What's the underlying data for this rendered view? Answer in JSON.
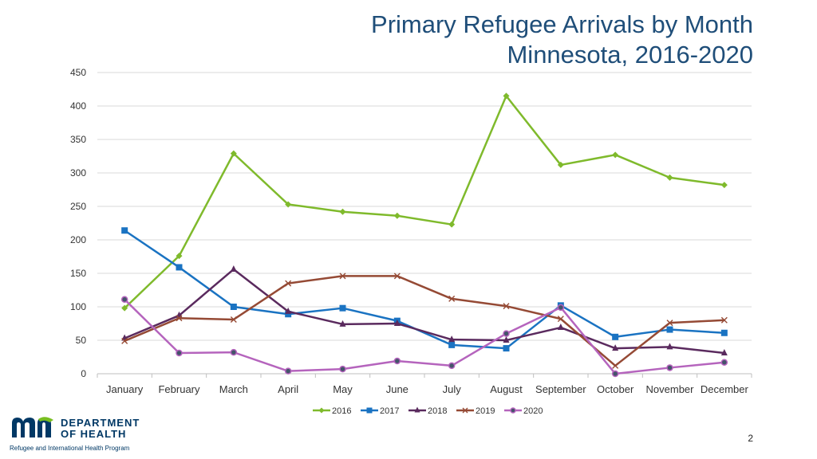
{
  "slide": {
    "title_line1": "Primary Refugee Arrivals by Month",
    "title_line2": "Minnesota, 2016-2020",
    "page_number": "2"
  },
  "logo": {
    "wordmark": "mn",
    "org_line1": "DEPARTMENT",
    "org_line2": "OF HEALTH",
    "program": "Refugee and International Health Program",
    "colors": {
      "blue": "#003865",
      "green": "#78be20"
    }
  },
  "chart_data": {
    "type": "line",
    "title": "Primary Refugee Arrivals by Month",
    "subtitle": "Minnesota, 2016-2020",
    "xlabel": "",
    "ylabel": "",
    "categories": [
      "January",
      "February",
      "March",
      "April",
      "May",
      "June",
      "July",
      "August",
      "September",
      "October",
      "November",
      "December"
    ],
    "ylim": [
      0,
      450
    ],
    "yticks": [
      0,
      50,
      100,
      150,
      200,
      250,
      300,
      350,
      400,
      450
    ],
    "grid": true,
    "legend_position": "bottom",
    "series": [
      {
        "name": "2016",
        "color": "#7fba2c",
        "marker": "diamond",
        "values": [
          98,
          176,
          329,
          253,
          242,
          236,
          223,
          415,
          312,
          327,
          293,
          282
        ]
      },
      {
        "name": "2017",
        "color": "#1a73c2",
        "marker": "square",
        "values": [
          214,
          159,
          100,
          89,
          98,
          79,
          43,
          38,
          102,
          55,
          66,
          61
        ]
      },
      {
        "name": "2018",
        "color": "#5a2a5e",
        "marker": "triangle",
        "values": [
          53,
          87,
          156,
          93,
          74,
          75,
          51,
          50,
          69,
          38,
          40,
          31
        ]
      },
      {
        "name": "2019",
        "color": "#954a35",
        "marker": "x",
        "values": [
          49,
          83,
          81,
          135,
          146,
          146,
          112,
          101,
          82,
          12,
          76,
          80
        ]
      },
      {
        "name": "2020",
        "color": "#b564bd",
        "marker": "circle",
        "values": [
          111,
          31,
          32,
          4,
          7,
          19,
          12,
          60,
          99,
          0,
          9,
          17
        ]
      }
    ]
  }
}
